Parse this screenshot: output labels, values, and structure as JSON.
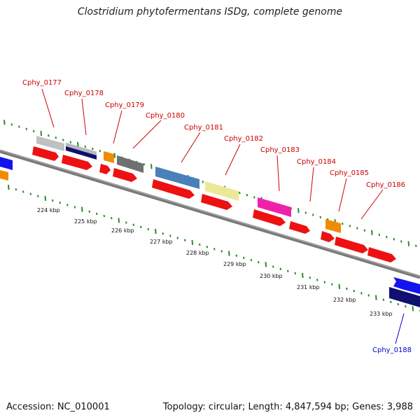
{
  "title": "Clostridium phytofermentans ISDg, complete genome",
  "footer": {
    "accession": "Accession: NC_010001",
    "summary": "Topology: circular; Length: 4,847,594 bp; Genes: 3,988"
  },
  "kbp_labels": [
    "224 kbp",
    "225 kbp",
    "226 kbp",
    "227 kbp",
    "228 kbp",
    "229 kbp",
    "230 kbp",
    "231 kbp",
    "232 kbp",
    "233 kbp"
  ],
  "gene_labels": [
    {
      "text": "Cphy_0177",
      "color": "#cc0000"
    },
    {
      "text": "Cphy_0178",
      "color": "#cc0000"
    },
    {
      "text": "Cphy_0179",
      "color": "#cc0000"
    },
    {
      "text": "Cphy_0180",
      "color": "#cc0000"
    },
    {
      "text": "Cphy_0181",
      "color": "#cc0000"
    },
    {
      "text": "Cphy_0182",
      "color": "#cc0000"
    },
    {
      "text": "Cphy_0183",
      "color": "#cc0000"
    },
    {
      "text": "Cphy_0184",
      "color": "#cc0000"
    },
    {
      "text": "Cphy_0185",
      "color": "#cc0000"
    },
    {
      "text": "Cphy_0186",
      "color": "#cc0000"
    },
    {
      "text": "Cphy_0188",
      "color": "#0000cc"
    }
  ],
  "colors": {
    "cds_red": "#ee1111",
    "grey": "#c0c0c0",
    "navy": "#101070",
    "orange": "#f08c00",
    "darkgrey": "#707070",
    "steelblue": "#4a80b8",
    "khaki": "#ece89a",
    "magenta": "#ee22aa",
    "blue": "#1414ee",
    "backbone": "#808080",
    "ticks": "#2a8a2a"
  }
}
